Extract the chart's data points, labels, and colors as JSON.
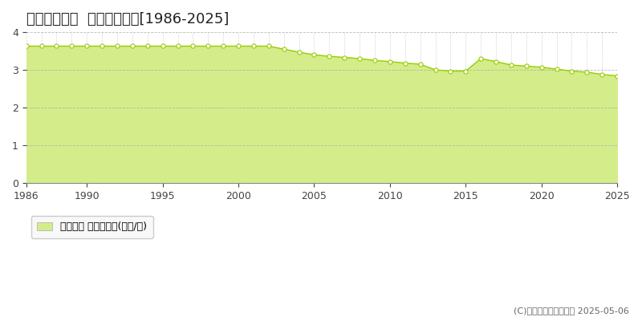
{
  "title": "上越市有間川  公示地価推移[1986-2025]",
  "years": [
    1986,
    1987,
    1988,
    1989,
    1990,
    1991,
    1992,
    1993,
    1994,
    1995,
    1996,
    1997,
    1998,
    1999,
    2000,
    2001,
    2002,
    2003,
    2004,
    2005,
    2006,
    2007,
    2008,
    2009,
    2010,
    2011,
    2012,
    2013,
    2014,
    2015,
    2016,
    2017,
    2018,
    2019,
    2020,
    2021,
    2022,
    2023,
    2024,
    2025
  ],
  "values": [
    3.63,
    3.63,
    3.63,
    3.63,
    3.63,
    3.63,
    3.63,
    3.63,
    3.63,
    3.63,
    3.63,
    3.63,
    3.63,
    3.63,
    3.63,
    3.63,
    3.63,
    3.55,
    3.47,
    3.4,
    3.36,
    3.33,
    3.3,
    3.25,
    3.22,
    3.18,
    3.15,
    3.0,
    2.97,
    2.97,
    3.3,
    3.22,
    3.13,
    3.1,
    3.07,
    3.02,
    2.97,
    2.94,
    2.88,
    2.84
  ],
  "line_color": "#99cc00",
  "fill_color": "#d4ed8a",
  "marker_facecolor": "#ffffff",
  "marker_edgecolor": "#99cc00",
  "grid_color": "#aaaaaa",
  "background_color": "#ffffff",
  "plot_bg_color": "#ffffff",
  "ylim": [
    0,
    4
  ],
  "yticks": [
    0,
    1,
    2,
    3,
    4
  ],
  "xlim": [
    1986,
    2025
  ],
  "xticks": [
    1986,
    1990,
    1995,
    2000,
    2005,
    2010,
    2015,
    2020,
    2025
  ],
  "legend_label": "公示地価 平均坪単価(万円/坪)",
  "copyright_text": "(C)土地価格ドットコム 2025-05-06",
  "title_fontsize": 13,
  "tick_fontsize": 9,
  "legend_fontsize": 9,
  "copyright_fontsize": 8
}
